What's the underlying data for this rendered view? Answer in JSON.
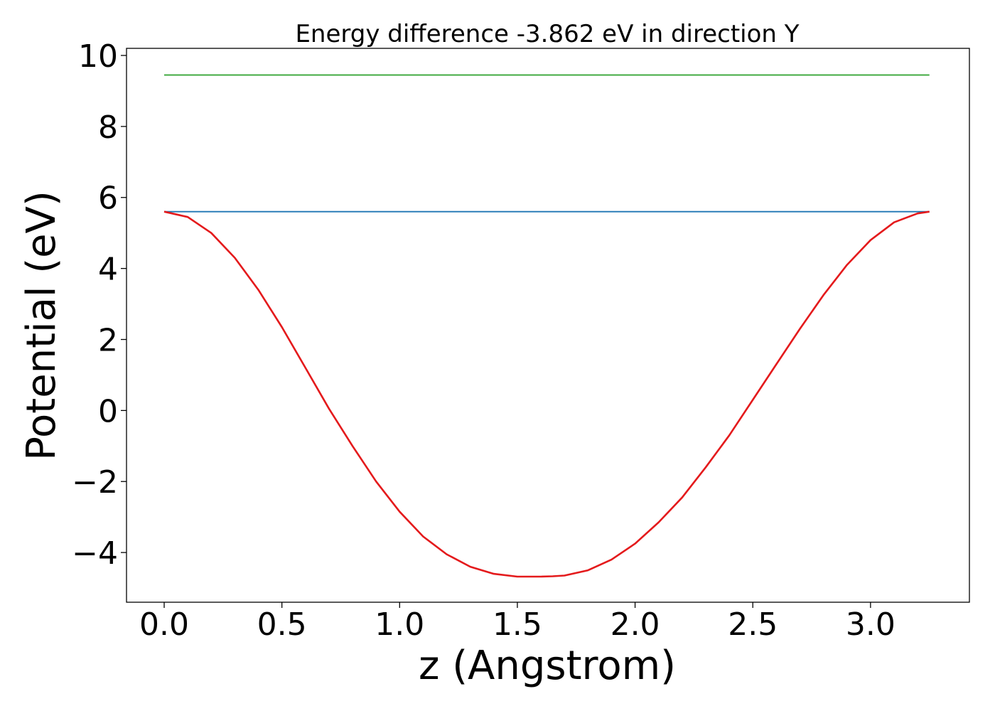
{
  "chart_data": {
    "type": "line",
    "title": "Energy difference -3.862 eV in direction Y",
    "xlabel": "z (Angstrom)",
    "ylabel": "Potential (eV)",
    "xlim": [
      -0.16,
      3.42
    ],
    "ylim": [
      -5.4,
      10.2
    ],
    "xticks": [
      0.0,
      0.5,
      1.0,
      1.5,
      2.0,
      2.5,
      3.0
    ],
    "xtick_labels": [
      "0.0",
      "0.5",
      "1.0",
      "1.5",
      "2.0",
      "2.5",
      "3.0"
    ],
    "yticks": [
      -4,
      -2,
      0,
      2,
      4,
      6,
      8,
      10
    ],
    "ytick_labels": [
      "−4",
      "−2",
      "0",
      "2",
      "4",
      "6",
      "8",
      "10"
    ],
    "grid": false,
    "series": [
      {
        "color": "#2ca02c",
        "x": [
          0.0,
          3.25
        ],
        "y": [
          9.45,
          9.45
        ]
      },
      {
        "color": "#1f77b4",
        "x": [
          0.0,
          3.25
        ],
        "y": [
          5.6,
          5.6
        ]
      },
      {
        "color": "#e41a1c",
        "x": [
          0.0,
          0.1,
          0.2,
          0.3,
          0.4,
          0.5,
          0.6,
          0.7,
          0.8,
          0.9,
          1.0,
          1.1,
          1.2,
          1.3,
          1.4,
          1.5,
          1.6,
          1.65,
          1.7,
          1.8,
          1.9,
          2.0,
          2.1,
          2.2,
          2.3,
          2.4,
          2.5,
          2.6,
          2.7,
          2.8,
          2.9,
          3.0,
          3.1,
          3.2,
          3.25
        ],
        "y": [
          5.6,
          5.45,
          5.0,
          4.3,
          3.4,
          2.35,
          1.2,
          0.05,
          -1.0,
          -2.0,
          -2.85,
          -3.55,
          -4.05,
          -4.4,
          -4.6,
          -4.68,
          -4.68,
          -4.67,
          -4.65,
          -4.5,
          -4.2,
          -3.75,
          -3.15,
          -2.45,
          -1.6,
          -0.7,
          0.3,
          1.3,
          2.3,
          3.25,
          4.1,
          4.8,
          5.3,
          5.55,
          5.6
        ]
      }
    ]
  }
}
